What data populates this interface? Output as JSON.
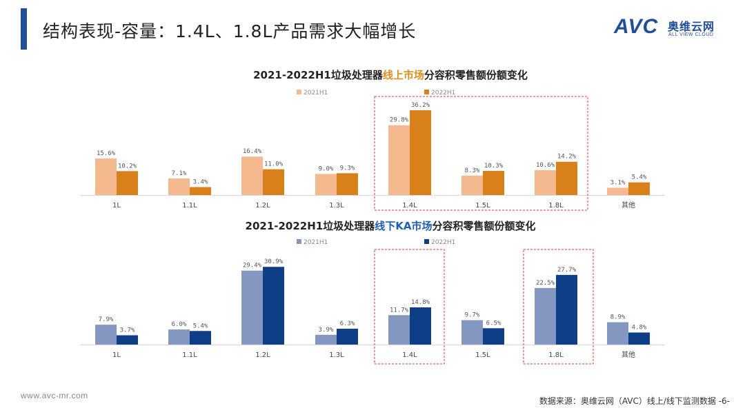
{
  "header": {
    "title": "结构表现-容量：1.4L、1.8L产品需求大幅增长"
  },
  "logo": {
    "mark": "AVC",
    "cn": "奥维云网",
    "en": "ALL VIEW CLOUD"
  },
  "footer": {
    "website": "www.avc-mr.com",
    "source": "数据来源：奥维云网（AVC）线上/线下监测数据 -6-"
  },
  "colors": {
    "online_2021": "#f4b98e",
    "online_2022": "#d8811b",
    "offline_2021": "#8497c0",
    "offline_2022": "#0e3f86",
    "highlight_highlight": "#e03a3a",
    "title_online": "#e08c1e",
    "title_offline": "#1f5fb0"
  },
  "chart_data": [
    {
      "type": "bar",
      "title_parts": [
        "2021-2022H1垃圾处理器",
        "线上市场",
        "分容积零售额份额变化"
      ],
      "categories": [
        "1L",
        "1.1L",
        "1.2L",
        "1.3L",
        "1.4L",
        "1.5L",
        "1.8L",
        "其他"
      ],
      "series": [
        {
          "name": "2021H1",
          "values": [
            15.6,
            7.1,
            16.4,
            9.0,
            29.8,
            8.3,
            10.6,
            3.1
          ]
        },
        {
          "name": "2022H1",
          "values": [
            10.2,
            3.4,
            11.0,
            9.3,
            36.2,
            10.3,
            14.2,
            5.4
          ]
        }
      ],
      "labels": [
        [
          "15.6%",
          "7.1%",
          "16.4%",
          "9.0%",
          "29.8%",
          "8.3%",
          "10.6%",
          "3.1%"
        ],
        [
          "10.2%",
          "3.4%",
          "11.0%",
          "9.3%",
          "36.2%",
          "10.3%",
          "14.2%",
          "5.4%"
        ]
      ],
      "highlighted_categories": [
        "1.4L",
        "1.5L",
        "1.8L"
      ],
      "ylabel": "",
      "xlabel": ""
    },
    {
      "type": "bar",
      "title_parts": [
        "2021-2022H1垃圾处理器",
        "线下KA市场",
        "分容积零售额份额变化"
      ],
      "categories": [
        "1L",
        "1.1L",
        "1.2L",
        "1.3L",
        "1.4L",
        "1.5L",
        "1.8L",
        "其他"
      ],
      "series": [
        {
          "name": "2021H1",
          "values": [
            7.9,
            6.0,
            29.4,
            3.9,
            11.7,
            9.7,
            22.5,
            8.9
          ]
        },
        {
          "name": "2022H1",
          "values": [
            3.7,
            5.4,
            30.9,
            6.3,
            14.8,
            6.5,
            27.7,
            4.8
          ]
        }
      ],
      "labels": [
        [
          "7.9%",
          "6.0%",
          "29.4%",
          "3.9%",
          "11.7%",
          "9.7%",
          "22.5%",
          "8.9%"
        ],
        [
          "3.7%",
          "5.4%",
          "30.9%",
          "6.3%",
          "14.8%",
          "6.5%",
          "27.7%",
          "4.8%"
        ]
      ],
      "highlighted_categories": [
        "1.4L",
        "1.8L"
      ],
      "ylabel": "",
      "xlabel": ""
    }
  ]
}
